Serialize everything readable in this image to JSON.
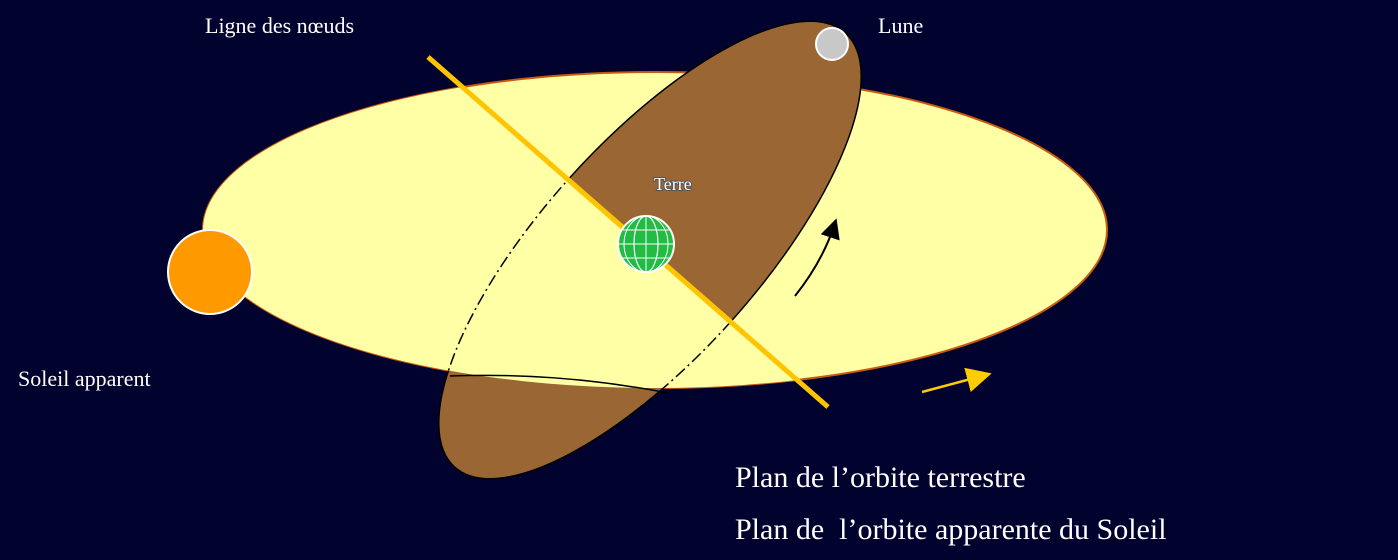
{
  "labels": {
    "node_line": "Ligne des nœuds",
    "moon": "Lune",
    "earth": "Terre",
    "sun": "Soleil apparent",
    "legend": [
      "Plan de l’orbite terrestre",
      "Plan de  l’orbite apparente du Soleil"
    ]
  }
}
